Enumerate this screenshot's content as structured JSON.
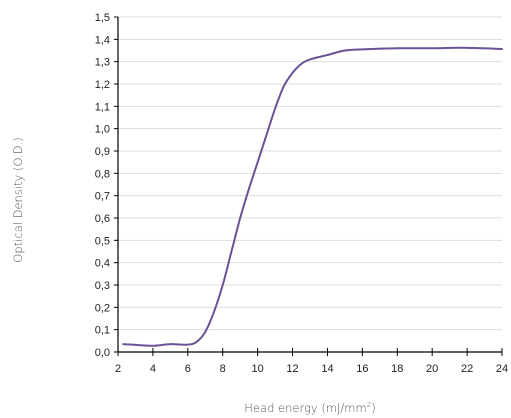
{
  "chart_data": {
    "type": "line",
    "xlabel": "Head energy (mJ/mm",
    "xlabel_sup": "2",
    "xlabel_close": ")",
    "ylabel": "Optical Density (O.D.)",
    "xlim": [
      2,
      24
    ],
    "ylim": [
      0,
      1.5
    ],
    "x_ticks": [
      2,
      4,
      6,
      8,
      10,
      12,
      14,
      16,
      18,
      20,
      22,
      24
    ],
    "x_tick_labels": [
      "2",
      "4",
      "6",
      "8",
      "10",
      "12",
      "14",
      "16",
      "18",
      "20",
      "22",
      "24"
    ],
    "y_ticks": [
      0,
      0.1,
      0.2,
      0.3,
      0.4,
      0.5,
      0.6,
      0.7,
      0.8,
      0.9,
      1.0,
      1.1,
      1.2,
      1.3,
      1.4,
      1.5
    ],
    "y_tick_labels": [
      "0,0",
      "0,1",
      "0,2",
      "0,3",
      "0,4",
      "0,5",
      "0,6",
      "0,7",
      "0,8",
      "0,9",
      "1,0",
      "1,1",
      "1,2",
      "1,3",
      "1,4",
      "1,5"
    ],
    "grid": "horizontal",
    "colors": {
      "line": "#6a5295",
      "grid": "#dddddd",
      "axis": "#000000"
    },
    "series": [
      {
        "x": [
          2.3,
          3,
          4,
          5,
          6,
          6.5,
          7,
          7.5,
          8,
          8.5,
          9,
          9.5,
          10,
          10.5,
          11,
          11.5,
          12,
          12.5,
          13,
          14,
          15,
          16,
          18,
          20,
          22,
          24
        ],
        "y": [
          0.035,
          0.032,
          0.028,
          0.035,
          0.033,
          0.045,
          0.09,
          0.18,
          0.3,
          0.45,
          0.6,
          0.73,
          0.85,
          0.97,
          1.09,
          1.19,
          1.25,
          1.29,
          1.31,
          1.33,
          1.35,
          1.355,
          1.36,
          1.36,
          1.362,
          1.357
        ]
      }
    ]
  }
}
